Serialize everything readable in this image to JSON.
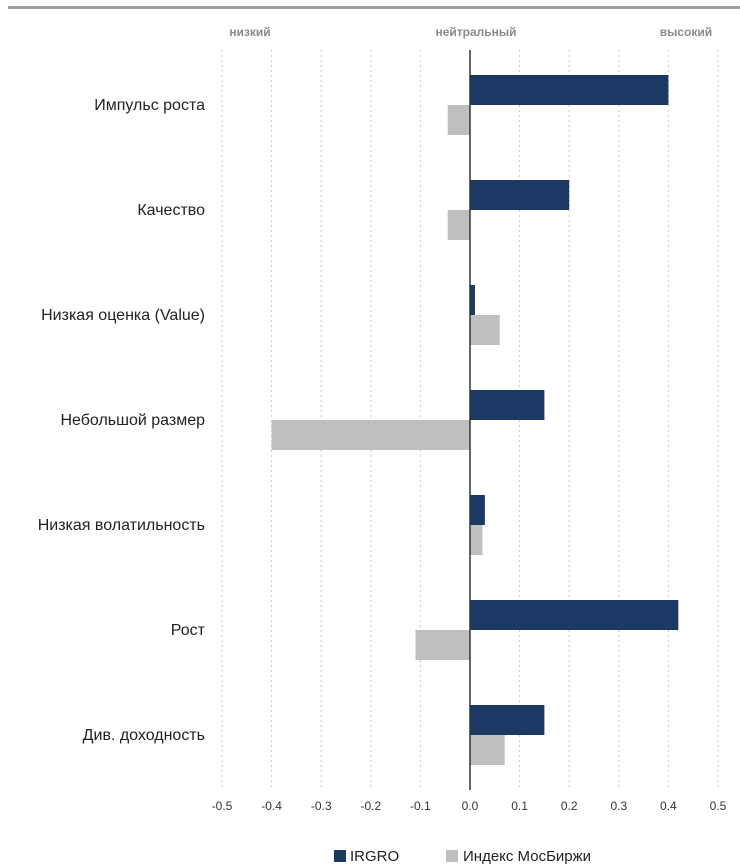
{
  "chart_data": {
    "type": "bar",
    "orientation": "horizontal",
    "categories": [
      "Импульс роста",
      "Качество",
      "Низкая оценка (Value)",
      "Небольшой размер",
      "Низкая волатильность",
      "Рост",
      "Див. доходность"
    ],
    "series": [
      {
        "name": "IRGRO",
        "color": "#1b3a63",
        "values": [
          0.4,
          0.2,
          0.01,
          0.15,
          0.03,
          0.42,
          0.15
        ]
      },
      {
        "name": "Индекс МосБиржи",
        "color": "#bfbfbf",
        "values": [
          -0.045,
          -0.045,
          0.06,
          -0.4,
          0.025,
          -0.11,
          0.07
        ]
      }
    ],
    "xlim": [
      -0.5,
      0.5
    ],
    "xticks": [
      "-0.5",
      "-0.4",
      "-0.3",
      "-0.2",
      "-0.1",
      "0.0",
      "0.1",
      "0.2",
      "0.3",
      "0.4",
      "0.5"
    ],
    "zone_labels": {
      "low": "низкий",
      "neutral": "нейтральный",
      "high": "высокий"
    },
    "grid": "vertical-dotted",
    "legend_position": "bottom"
  }
}
